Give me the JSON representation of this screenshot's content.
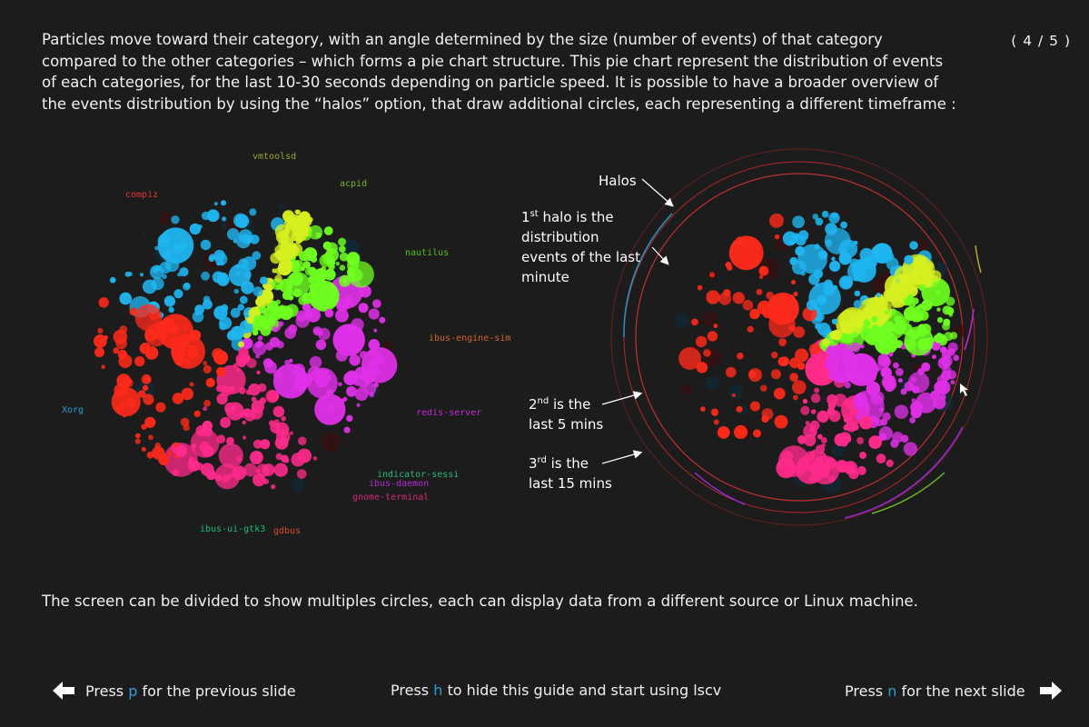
{
  "slide_counter": "( 4 / 5 )",
  "intro_text": "Particles move toward their category, with an angle determined by the size (number of events) of that category compared to the other categories – which forms a pie chart structure. This pie chart represent the distribution of events of each categories, for the last 10-30 seconds depending on particle speed. It is possible to have a broader overview of the events distribution by using the “halos” option, that draw additional circles, each representing a different timeframe :",
  "categories": [
    {
      "name": "vmtoolsd",
      "color": "#9aa52a"
    },
    {
      "name": "acpid",
      "color": "#7ab92a"
    },
    {
      "name": "compiz",
      "color": "#e0343a"
    },
    {
      "name": "nautilus",
      "color": "#55c21c"
    },
    {
      "name": "ibus-engine-sim",
      "color": "#d2642a"
    },
    {
      "name": "Xorg",
      "color": "#2a9bd6"
    },
    {
      "name": "redis-server",
      "color": "#c428d6"
    },
    {
      "name": "indicator-sessi",
      "color": "#2ab97a"
    },
    {
      "name": "ibus-daemon",
      "color": "#b62ad6"
    },
    {
      "name": "gnome-terminal",
      "color": "#d6287a"
    },
    {
      "name": "ibus-ui-gtk3",
      "color": "#1eb978"
    },
    {
      "name": "gdbus",
      "color": "#d64a2a"
    }
  ],
  "annotations": {
    "halos": "Halos",
    "first_halo": {
      "ordinal": "1",
      "suffix": "st",
      "lines": [
        "halo is the",
        "distribution",
        "events of the last",
        "minute"
      ],
      "line2_prefix": "of"
    },
    "second_halo": {
      "ordinal": "2",
      "suffix": "nd",
      "line1": "is the",
      "line2": "last 5 mins"
    },
    "third_halo": {
      "ordinal": "3",
      "suffix": "rd",
      "line1": "is the",
      "line2": "last 15 mins"
    }
  },
  "outro_text": "The screen can be divided to show multiples circles, each can display data from a different source or Linux machine.",
  "nav": {
    "prev": {
      "before": "Press ",
      "key": "p",
      "after": " for the previous slide"
    },
    "hide": {
      "before": "Press ",
      "key": "h",
      "after": " to hide this guide and start using lscv"
    },
    "next": {
      "before": "Press ",
      "key": "n",
      "after": " for the next slide"
    }
  },
  "colors": {
    "background": "#1c1c1c",
    "key_accent": "#2e9bd6",
    "particle_red": "#ff2a1a",
    "particle_blue": "#1fb5f0",
    "particle_magenta": "#e030e8",
    "particle_green": "#6fff20",
    "particle_pink": "#ff2a8a",
    "particle_yellow": "#d6f020"
  }
}
